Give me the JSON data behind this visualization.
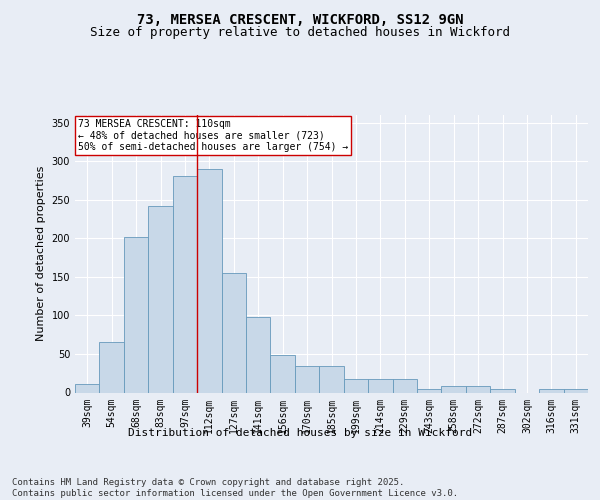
{
  "title1": "73, MERSEA CRESCENT, WICKFORD, SS12 9GN",
  "title2": "Size of property relative to detached houses in Wickford",
  "xlabel": "Distribution of detached houses by size in Wickford",
  "ylabel": "Number of detached properties",
  "categories": [
    "39sqm",
    "54sqm",
    "68sqm",
    "83sqm",
    "97sqm",
    "112sqm",
    "127sqm",
    "141sqm",
    "156sqm",
    "170sqm",
    "185sqm",
    "199sqm",
    "214sqm",
    "229sqm",
    "243sqm",
    "258sqm",
    "272sqm",
    "287sqm",
    "302sqm",
    "316sqm",
    "331sqm"
  ],
  "values": [
    11,
    65,
    202,
    242,
    281,
    290,
    155,
    98,
    49,
    35,
    35,
    17,
    17,
    18,
    5,
    9,
    8,
    5,
    0,
    5,
    4
  ],
  "bar_color": "#c8d8e8",
  "bar_edge_color": "#6699bb",
  "vline_x_index": 5,
  "vline_color": "#cc0000",
  "annotation_text": "73 MERSEA CRESCENT: 110sqm\n← 48% of detached houses are smaller (723)\n50% of semi-detached houses are larger (754) →",
  "annotation_box_color": "#ffffff",
  "annotation_box_edge": "#cc0000",
  "bg_color": "#e8edf5",
  "plot_bg_color": "#e8edf5",
  "ylim": [
    0,
    360
  ],
  "yticks": [
    0,
    50,
    100,
    150,
    200,
    250,
    300,
    350
  ],
  "footer": "Contains HM Land Registry data © Crown copyright and database right 2025.\nContains public sector information licensed under the Open Government Licence v3.0.",
  "title_fontsize": 10,
  "subtitle_fontsize": 9,
  "axis_label_fontsize": 8,
  "tick_fontsize": 7,
  "annotation_fontsize": 7,
  "footer_fontsize": 6.5
}
